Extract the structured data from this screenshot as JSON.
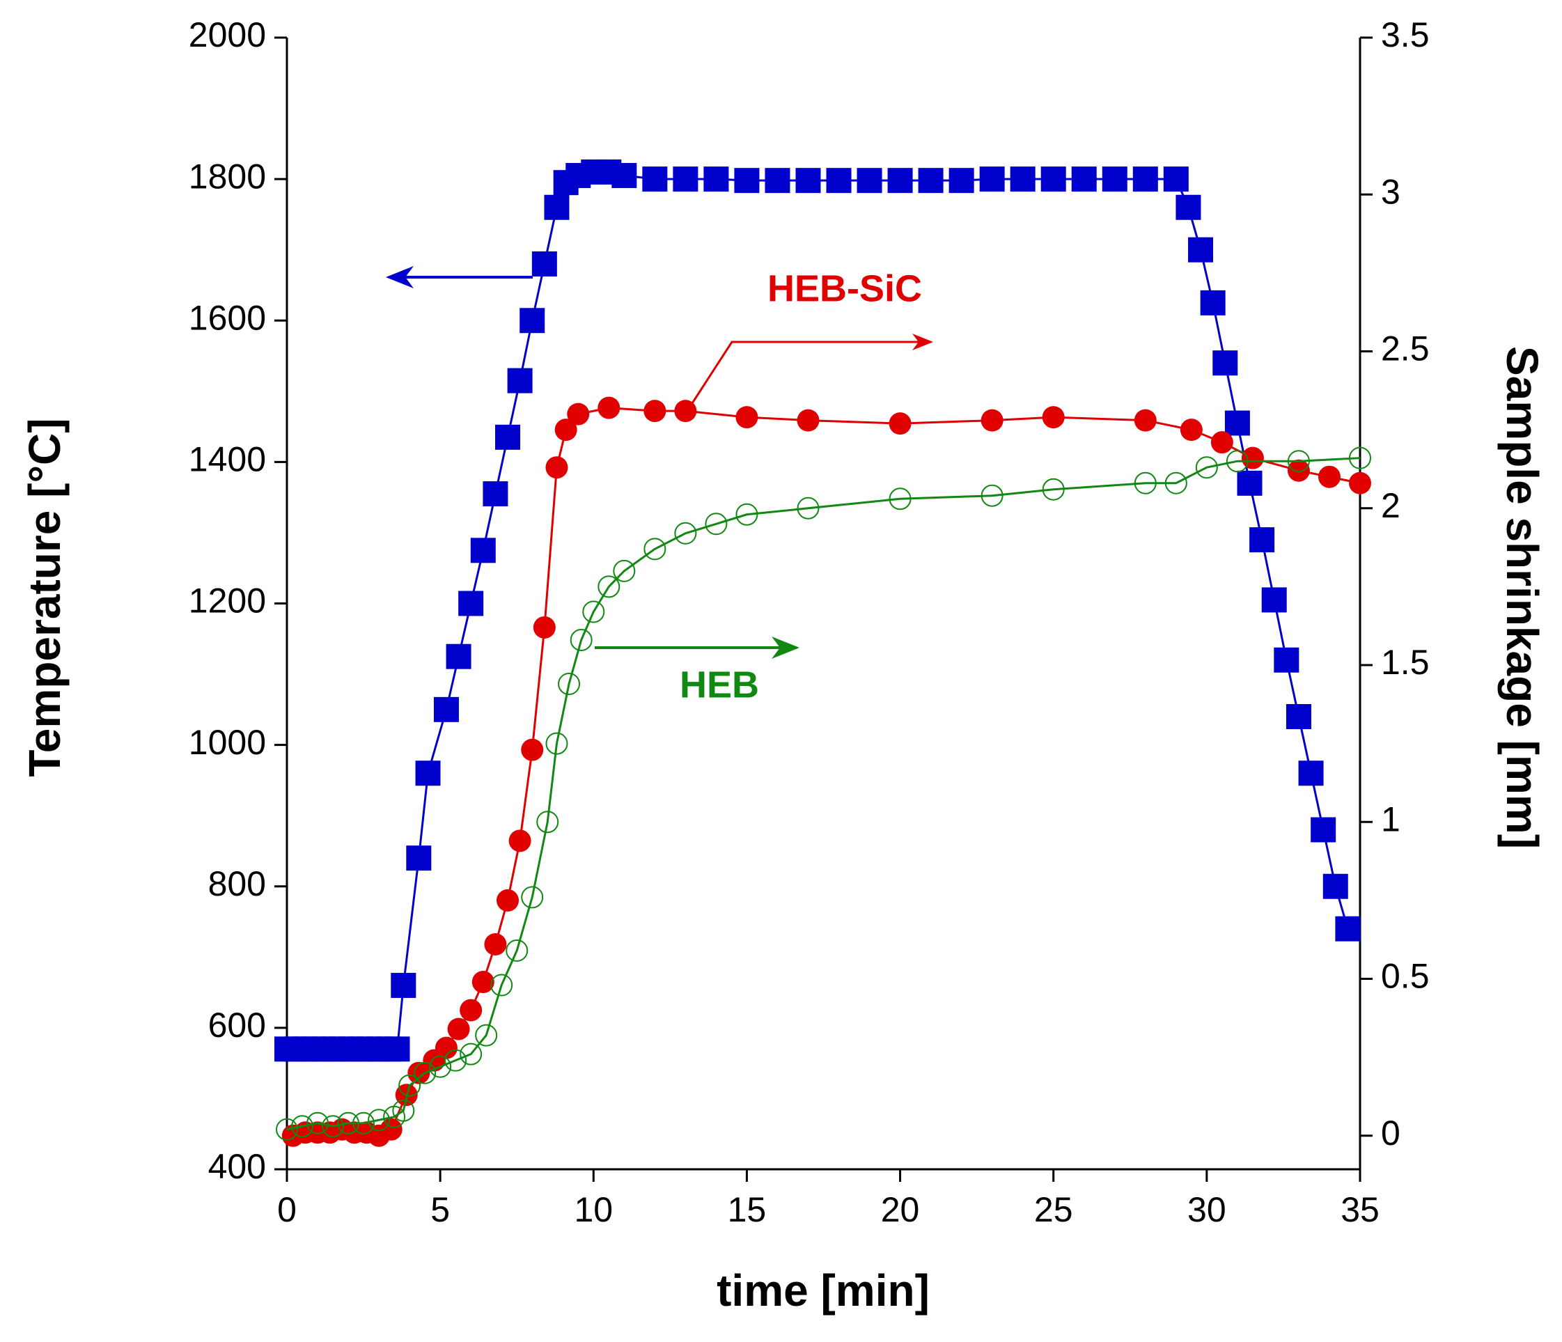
{
  "chart_data": {
    "type": "line",
    "xlabel": "time [min]",
    "ylabel": "Temperature [°C]",
    "y2label": "Sample shrinkage [mm]",
    "xlim": [
      0,
      35
    ],
    "xticks": [
      0,
      5,
      10,
      15,
      20,
      25,
      30,
      35
    ],
    "ylim": [
      400,
      2000
    ],
    "yticks": [
      400,
      600,
      800,
      1000,
      1200,
      1400,
      1600,
      1800,
      2000
    ],
    "y2lim": [
      -0.107,
      3.5
    ],
    "y2ticks": [
      0,
      0.5,
      1,
      1.5,
      2,
      2.5,
      3,
      3.5
    ],
    "series": [
      {
        "color": "#0000cc",
        "marker": "square",
        "axis": "y",
        "x": [
          0,
          0.3,
          0.6,
          0.9,
          1.2,
          1.5,
          1.8,
          2.1,
          2.4,
          2.7,
          3.0,
          3.3,
          3.6,
          3.8,
          4.3,
          4.6,
          5.2,
          5.6,
          6.0,
          6.4,
          6.8,
          7.2,
          7.6,
          8.0,
          8.4,
          8.8,
          9.1,
          9.5,
          10,
          10.5,
          11,
          12,
          13,
          14,
          15,
          16,
          17,
          18,
          19,
          20,
          21,
          22,
          23,
          24,
          25,
          26,
          27,
          28,
          29,
          29.4,
          29.8,
          30.2,
          30.6,
          31.0,
          31.4,
          31.8,
          32.2,
          32.6,
          33.0,
          33.4,
          33.8,
          34.2,
          34.6
        ],
        "values": [
          570,
          570,
          570,
          570,
          570,
          570,
          570,
          570,
          570,
          570,
          570,
          570,
          570,
          660,
          840,
          960,
          1050,
          1125,
          1200,
          1275,
          1355,
          1435,
          1515,
          1600,
          1680,
          1760,
          1795,
          1805,
          1810,
          1810,
          1805,
          1800,
          1800,
          1800,
          1798,
          1798,
          1798,
          1798,
          1798,
          1798,
          1798,
          1798,
          1800,
          1800,
          1800,
          1800,
          1800,
          1800,
          1800,
          1760,
          1700,
          1625,
          1540,
          1455,
          1370,
          1290,
          1205,
          1120,
          1040,
          960,
          880,
          800,
          740
        ]
      },
      {
        "color": "#e00000",
        "marker": "circle",
        "axis": "y2",
        "x": [
          0.2,
          0.6,
          1.0,
          1.4,
          1.8,
          2.2,
          2.6,
          3.0,
          3.4,
          3.9,
          4.3,
          4.8,
          5.2,
          5.6,
          6.0,
          6.4,
          6.8,
          7.2,
          7.6,
          8.0,
          8.4,
          8.8,
          9.1,
          9.5,
          10.5,
          12,
          13,
          15,
          17,
          20,
          23,
          25,
          28,
          29.5,
          30.5,
          31.5,
          33,
          34,
          35
        ],
        "values": [
          0,
          0.01,
          0.01,
          0.01,
          0.02,
          0.01,
          0.01,
          0,
          0.02,
          0.13,
          0.2,
          0.24,
          0.28,
          0.34,
          0.4,
          0.49,
          0.61,
          0.75,
          0.94,
          1.23,
          1.62,
          2.13,
          2.25,
          2.3,
          2.32,
          2.31,
          2.31,
          2.29,
          2.28,
          2.27,
          2.28,
          2.29,
          2.28,
          2.25,
          2.21,
          2.16,
          2.12,
          2.1,
          2.08
        ]
      },
      {
        "color": "#118811",
        "marker": "open-circle",
        "axis": "y2",
        "x": [
          0,
          0.5,
          1,
          1.5,
          2,
          2.5,
          3,
          3.5,
          3.8,
          4.0,
          4.5,
          5,
          5.5,
          6,
          6.5,
          7,
          7.5,
          8,
          8.5,
          8.8,
          9.2,
          9.6,
          10,
          10.5,
          11,
          12,
          13,
          14,
          15,
          17,
          20,
          23,
          25,
          28,
          29,
          30,
          31,
          33,
          35
        ],
        "values": [
          0.02,
          0.03,
          0.04,
          0.03,
          0.04,
          0.04,
          0.05,
          0.06,
          0.08,
          0.16,
          0.2,
          0.22,
          0.24,
          0.26,
          0.32,
          0.48,
          0.59,
          0.76,
          1.0,
          1.25,
          1.44,
          1.58,
          1.67,
          1.75,
          1.8,
          1.87,
          1.92,
          1.95,
          1.98,
          2.0,
          2.03,
          2.04,
          2.06,
          2.08,
          2.08,
          2.13,
          2.15,
          2.15,
          2.16
        ]
      }
    ],
    "annotations": [
      {
        "text": "HEB-SiC",
        "color": "#e00000"
      },
      {
        "text": "HEB",
        "color": "#118811"
      }
    ]
  }
}
